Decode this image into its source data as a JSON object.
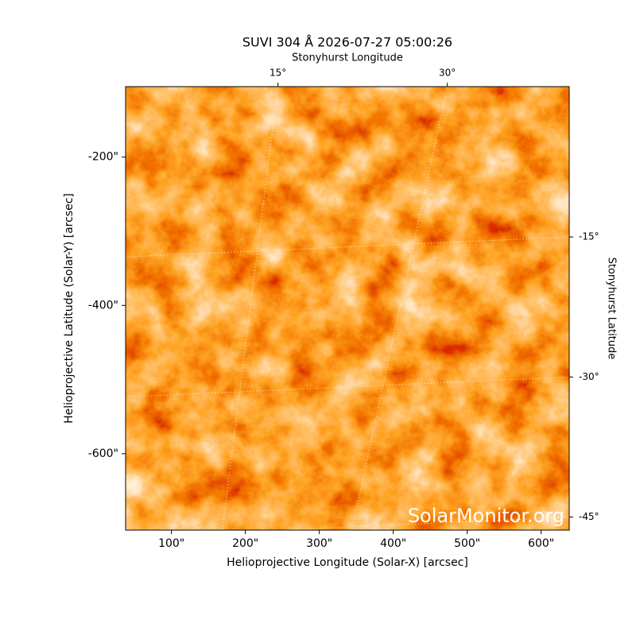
{
  "chart_data": {
    "type": "image",
    "title": "SUVI 304 Å 2026-07-27 05:00:26",
    "x_label": "Helioprojective Longitude (Solar-X) [arcsec]",
    "y_label": "Helioprojective Latitude (Solar-Y) [arcsec]",
    "x2_label": "Stonyhurst Longitude",
    "y2_label": "Stonyhurst Latitude",
    "xlim": [
      38,
      638
    ],
    "ylim": [
      -703,
      -105
    ],
    "xticks": [
      {
        "value": 100,
        "label": "100\""
      },
      {
        "value": 200,
        "label": "200\""
      },
      {
        "value": 300,
        "label": "300\""
      },
      {
        "value": 400,
        "label": "400\""
      },
      {
        "value": 500,
        "label": "500\""
      },
      {
        "value": 600,
        "label": "600\""
      }
    ],
    "yticks": [
      {
        "value": -200,
        "label": "-200\""
      },
      {
        "value": -400,
        "label": "-400\""
      },
      {
        "value": -600,
        "label": "-600\""
      }
    ],
    "x2lim": [
      1.5,
      40.8
    ],
    "x2ticks": [
      {
        "value": 15,
        "label": "15°"
      },
      {
        "value": 30,
        "label": "30°"
      }
    ],
    "y2lim": [
      -46.4,
      1.1
    ],
    "y2ticks": [
      {
        "value": -15,
        "label": "-15°"
      },
      {
        "value": -30,
        "label": "-30°"
      },
      {
        "value": -45,
        "label": "-45°"
      }
    ],
    "watermark": "SolarMonitor.org"
  }
}
